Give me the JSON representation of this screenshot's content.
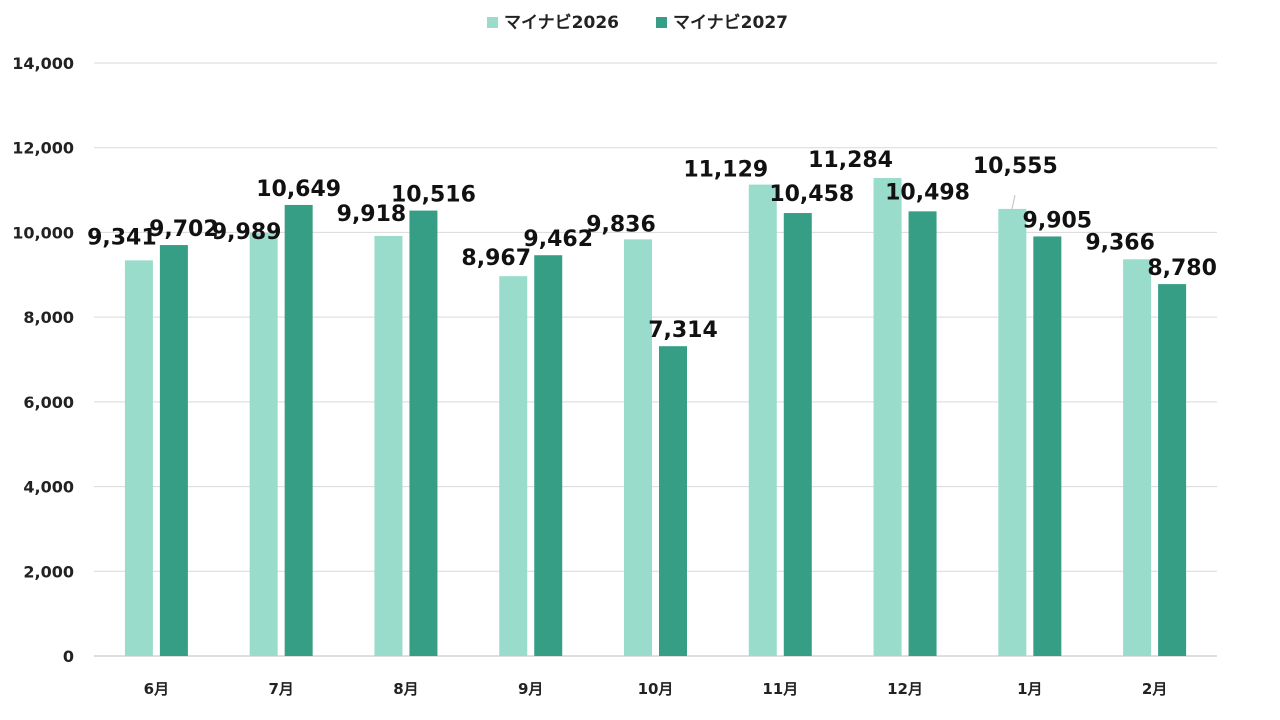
{
  "chart_data": {
    "type": "bar",
    "categories": [
      "6月",
      "7月",
      "8月",
      "9月",
      "10月",
      "11月",
      "12月",
      "1月",
      "2月"
    ],
    "series": [
      {
        "name": "マイナビ2026",
        "color": "#99dccb",
        "values": [
          9341,
          9989,
          9918,
          8967,
          9836,
          11129,
          11284,
          10555,
          9366
        ],
        "labels": [
          "9,341",
          "9,989",
          "9,918",
          "8,967",
          "9,836",
          "11,129",
          "11,284",
          "10,555",
          "9,366"
        ]
      },
      {
        "name": "マイナビ2027",
        "color": "#379e86",
        "values": [
          9702,
          10649,
          10516,
          9462,
          7314,
          10458,
          10498,
          9905,
          8780
        ],
        "labels": [
          "9,702",
          "10,649",
          "10,516",
          "9,462",
          "7,314",
          "10,458",
          "10,498",
          "9,905",
          "8,780"
        ]
      }
    ],
    "yticks": [
      0,
      2000,
      4000,
      6000,
      8000,
      10000,
      12000,
      14000
    ],
    "ytick_labels": [
      "0",
      "2,000",
      "4,000",
      "6,000",
      "8,000",
      "10,000",
      "12,000",
      "14,000"
    ],
    "ylim": [
      0,
      14000
    ],
    "grid": true,
    "legend_position": "top-center"
  }
}
